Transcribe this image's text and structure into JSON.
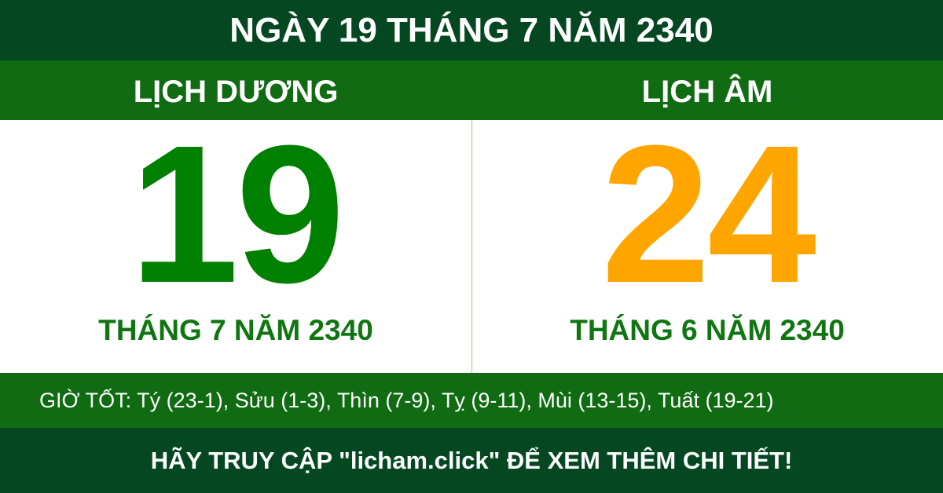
{
  "title": "NGÀY 19 THÁNG 7 NĂM 2340",
  "solar": {
    "label": "LỊCH DƯƠNG",
    "day": "19",
    "month_year": "THÁNG 7 NĂM 2340",
    "color": "#008000"
  },
  "lunar": {
    "label": "LỊCH ÂM",
    "day": "24",
    "month_year": "THÁNG 6 NĂM 2340",
    "color": "#ffa500"
  },
  "good_hours": "GIỜ TỐT: Tý (23-1), Sửu (1-3), Thìn (7-9), Tỵ (9-11), Mùi (13-15), Tuất (19-21)",
  "footer": "HÃY TRUY CẬP \"licham.click\" ĐỂ XEM THÊM CHI TIẾT!"
}
